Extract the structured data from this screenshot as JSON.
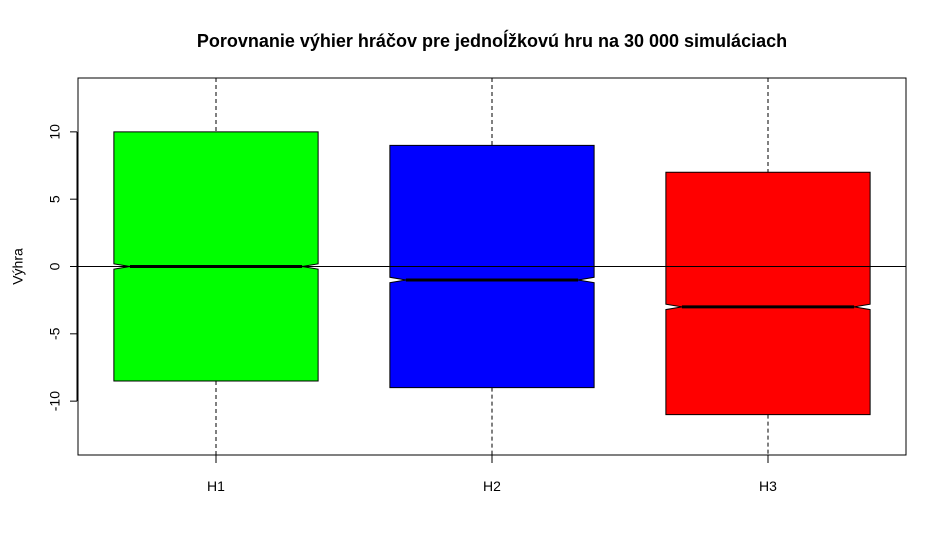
{
  "chart_data": {
    "type": "boxplot",
    "title": "Porovnanie výhier hráčov pre jednoĺžkovú hru na 30 000 simuláciach",
    "xlabel": "",
    "ylabel": "Výhra",
    "ylim": [
      -14,
      14
    ],
    "yticks": [
      -10,
      -5,
      0,
      5,
      10
    ],
    "reference_line": 0,
    "notch": true,
    "grid": false,
    "categories": [
      "H1",
      "H2",
      "H3"
    ],
    "boxes": [
      {
        "name": "H1",
        "whisker_low": -14,
        "q1": -8.5,
        "median": 0,
        "q3": 10,
        "whisker_high": 14,
        "notch_low": -0.2,
        "notch_high": 0.2,
        "color": "#00ff00"
      },
      {
        "name": "H2",
        "whisker_low": -14,
        "q1": -9,
        "median": -1,
        "q3": 9,
        "whisker_high": 14,
        "notch_low": -1.2,
        "notch_high": -0.8,
        "color": "#0000ff"
      },
      {
        "name": "H3",
        "whisker_low": -14,
        "q1": -11,
        "median": -3,
        "q3": 7,
        "whisker_high": 14,
        "notch_low": -3.2,
        "notch_high": -2.8,
        "color": "#ff0000"
      }
    ]
  }
}
